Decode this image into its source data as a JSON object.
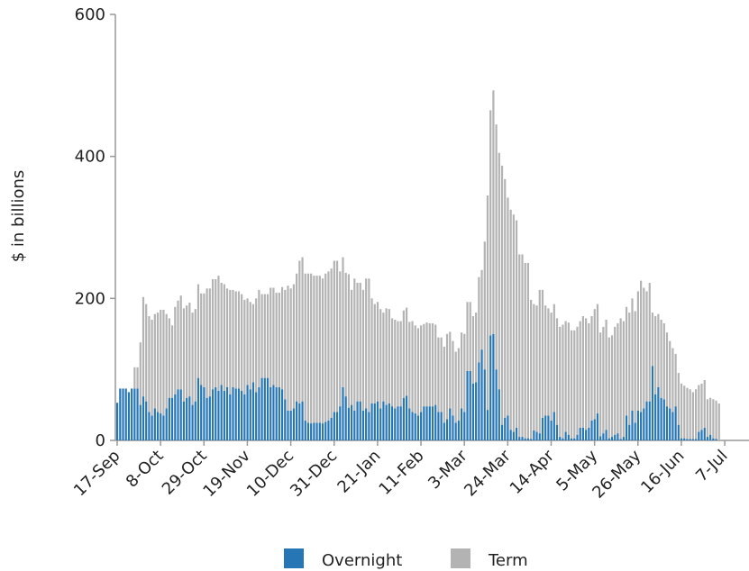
{
  "chart_data": {
    "type": "stacked_bar",
    "y_label": "$ in billions",
    "categories": [
      "17-Sep",
      null,
      null,
      null,
      null,
      null,
      null,
      null,
      null,
      null,
      null,
      null,
      null,
      null,
      null,
      "8-Oct",
      null,
      null,
      null,
      null,
      null,
      null,
      null,
      null,
      null,
      null,
      null,
      null,
      null,
      null,
      "29-Oct",
      null,
      null,
      null,
      null,
      null,
      null,
      null,
      null,
      null,
      null,
      null,
      null,
      null,
      null,
      "19-Nov",
      null,
      null,
      null,
      null,
      null,
      null,
      null,
      null,
      null,
      null,
      null,
      null,
      null,
      null,
      "10-Dec",
      null,
      null,
      null,
      null,
      null,
      null,
      null,
      null,
      null,
      null,
      null,
      null,
      null,
      null,
      "31-Dec",
      null,
      null,
      null,
      null,
      null,
      null,
      null,
      null,
      null,
      null,
      null,
      null,
      null,
      null,
      "21-Jan",
      null,
      null,
      null,
      null,
      null,
      null,
      null,
      null,
      null,
      null,
      null,
      null,
      null,
      null,
      "11-Feb",
      null,
      null,
      null,
      null,
      null,
      null,
      null,
      null,
      null,
      null,
      null,
      null,
      null,
      null,
      "3-Mar",
      null,
      null,
      null,
      null,
      null,
      null,
      null,
      null,
      null,
      null,
      null,
      null,
      null,
      null,
      "24-Mar",
      null,
      null,
      null,
      null,
      null,
      null,
      null,
      null,
      null,
      null,
      null,
      null,
      null,
      null,
      "14-Apr",
      null,
      null,
      null,
      null,
      null,
      null,
      null,
      null,
      null,
      null,
      null,
      null,
      null,
      null,
      "5-May",
      null,
      null,
      null,
      null,
      null,
      null,
      null,
      null,
      null,
      null,
      null,
      null,
      null,
      null,
      "26-May",
      null,
      null,
      null,
      null,
      null,
      null,
      null,
      null,
      null,
      null,
      null,
      null,
      null,
      null,
      "16-Jun",
      null,
      null,
      null,
      null,
      null,
      null,
      null,
      null,
      null,
      null,
      null,
      null,
      null,
      null,
      "7-Jul"
    ],
    "series": [
      {
        "name": "Overnight",
        "color": "#2676b5",
        "values": [
          53,
          73,
          73,
          73,
          68,
          73,
          73,
          73,
          50,
          62,
          55,
          40,
          35,
          45,
          40,
          38,
          35,
          45,
          60,
          60,
          65,
          72,
          72,
          55,
          60,
          62,
          50,
          55,
          88,
          78,
          75,
          60,
          62,
          72,
          75,
          70,
          78,
          70,
          75,
          65,
          75,
          73,
          73,
          70,
          65,
          78,
          72,
          82,
          68,
          75,
          88,
          88,
          88,
          75,
          78,
          75,
          75,
          72,
          58,
          42,
          42,
          45,
          55,
          52,
          55,
          28,
          25,
          24,
          25,
          25,
          25,
          24,
          26,
          28,
          32,
          40,
          40,
          48,
          75,
          62,
          46,
          50,
          42,
          55,
          55,
          42,
          45,
          40,
          52,
          52,
          55,
          45,
          55,
          50,
          52,
          48,
          45,
          48,
          48,
          60,
          63,
          45,
          40,
          38,
          35,
          40,
          48,
          48,
          48,
          48,
          50,
          40,
          40,
          25,
          30,
          45,
          35,
          25,
          28,
          45,
          40,
          98,
          98,
          80,
          82,
          110,
          128,
          100,
          43,
          148,
          150,
          100,
          72,
          22,
          32,
          35,
          15,
          12,
          18,
          5,
          5,
          3,
          3,
          2,
          14,
          12,
          10,
          32,
          35,
          35,
          28,
          40,
          22,
          5,
          3,
          12,
          8,
          3,
          3,
          8,
          18,
          18,
          15,
          18,
          28,
          30,
          38,
          6,
          10,
          15,
          3,
          5,
          8,
          10,
          2,
          5,
          35,
          22,
          42,
          25,
          42,
          40,
          45,
          55,
          55,
          105,
          65,
          75,
          60,
          58,
          48,
          45,
          40,
          48,
          22,
          3,
          3,
          2,
          2,
          2,
          2,
          12,
          15,
          18,
          5,
          8,
          3,
          2,
          0,
          null,
          null
        ]
      },
      {
        "name": "Term",
        "color": "#b3b3b3",
        "values": [
          0,
          0,
          0,
          0,
          0,
          0,
          30,
          30,
          88,
          140,
          137,
          135,
          135,
          133,
          140,
          146,
          149,
          133,
          112,
          102,
          123,
          125,
          132,
          131,
          130,
          132,
          130,
          130,
          132,
          129,
          132,
          154,
          152,
          155,
          152,
          162,
          144,
          150,
          139,
          147,
          137,
          137,
          137,
          136,
          133,
          122,
          123,
          110,
          132,
          137,
          118,
          118,
          118,
          140,
          137,
          133,
          133,
          144,
          154,
          176,
          172,
          175,
          180,
          201,
          203,
          207,
          210,
          211,
          207,
          207,
          207,
          204,
          209,
          210,
          210,
          213,
          213,
          190,
          183,
          174,
          188,
          162,
          186,
          167,
          167,
          170,
          183,
          188,
          148,
          140,
          140,
          140,
          125,
          136,
          133,
          124,
          125,
          120,
          120,
          123,
          124,
          122,
          128,
          124,
          123,
          122,
          116,
          118,
          117,
          117,
          113,
          105,
          105,
          107,
          120,
          108,
          105,
          100,
          102,
          107,
          110,
          97,
          97,
          95,
          98,
          120,
          112,
          180,
          302,
          317,
          343,
          345,
          333,
          365,
          336,
          307,
          310,
          306,
          292,
          257,
          257,
          247,
          247,
          196,
          178,
          178,
          202,
          180,
          155,
          151,
          152,
          152,
          150,
          155,
          160,
          156,
          158,
          152,
          152,
          152,
          150,
          157,
          157,
          147,
          147,
          155,
          154,
          146,
          150,
          155,
          142,
          143,
          152,
          155,
          170,
          163,
          153,
          158,
          158,
          157,
          168,
          185,
          170,
          155,
          167,
          75,
          110,
          103,
          110,
          107,
          104,
          95,
          90,
          74,
          73,
          77,
          74,
          72,
          70,
          66,
          70,
          66,
          65,
          67,
          53,
          52,
          55,
          54,
          52,
          null,
          null
        ]
      }
    ],
    "ylim": [
      0,
      600
    ],
    "yticks": [
      0,
      200,
      400,
      600
    ],
    "grid": false
  }
}
